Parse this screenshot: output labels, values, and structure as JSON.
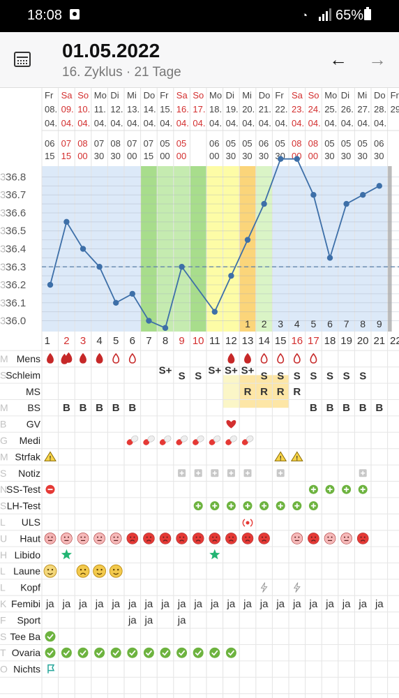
{
  "status_bar": {
    "time": "18:08",
    "battery": "65%"
  },
  "header": {
    "date": "01.05.2022",
    "cycle_info": "16. Zyklus · 21 Tage"
  },
  "chart_data": {
    "type": "line",
    "ylabels": [
      "36.8",
      "36.7",
      "36.6",
      "36.5",
      "36.4",
      "36.3",
      "36.2",
      "36.1",
      "36.0"
    ],
    "ylim": [
      35.94,
      36.86
    ],
    "cover_line": 36.3,
    "weekdays": [
      "Fr",
      "Sa",
      "So",
      "Mo",
      "Di",
      "Mi",
      "Do",
      "Fr",
      "Sa",
      "So",
      "Mo",
      "Di",
      "Mi",
      "Do",
      "Fr",
      "Sa",
      "So",
      "Mo",
      "Di",
      "Mi",
      "Do",
      "Fr"
    ],
    "days": [
      "08.",
      "09.",
      "10.",
      "11.",
      "12.",
      "13.",
      "14.",
      "15.",
      "16.",
      "17.",
      "18.",
      "19.",
      "20.",
      "21.",
      "22.",
      "23.",
      "24.",
      "25.",
      "26.",
      "27.",
      "28.",
      "29."
    ],
    "months": [
      "04.",
      "04.",
      "04.",
      "04.",
      "04.",
      "04.",
      "04.",
      "04.",
      "04.",
      "04.",
      "04.",
      "04.",
      "04.",
      "04.",
      "04.",
      "04.",
      "04.",
      "04.",
      "04.",
      "04.",
      "04.",
      ""
    ],
    "time_h": [
      "06",
      "07",
      "08",
      "07",
      "08",
      "07",
      "07",
      "05",
      "05",
      "",
      "06",
      "05",
      "05",
      "06",
      "05",
      "08",
      "08",
      "05",
      "05",
      "05",
      "06",
      ""
    ],
    "time_m": [
      "15",
      "15",
      "00",
      "30",
      "30",
      "00",
      "15",
      "00",
      "00",
      "",
      "00",
      "30",
      "30",
      "30",
      "30",
      "00",
      "00",
      "30",
      "30",
      "30",
      "30",
      ""
    ],
    "red_days": [
      1,
      2,
      8,
      9,
      15,
      16
    ],
    "cycle_days": [
      "1",
      "2",
      "3",
      "4",
      "5",
      "6",
      "7",
      "8",
      "9",
      "10",
      "11",
      "12",
      "13",
      "14",
      "15",
      "16",
      "17",
      "18",
      "19",
      "20",
      "21",
      "22"
    ],
    "red_cycle_days": [
      2,
      3,
      9,
      10,
      16,
      17
    ],
    "post_ovulation_count": [
      "1",
      "2",
      "3",
      "4",
      "5",
      "6",
      "7",
      "8",
      "9"
    ],
    "temperatures": [
      36.2,
      36.55,
      36.4,
      36.3,
      36.1,
      36.15,
      36.0,
      35.96,
      36.3,
      null,
      36.05,
      36.25,
      36.45,
      36.65,
      36.9,
      36.9,
      36.7,
      36.35,
      36.65,
      36.7,
      36.75
    ],
    "colors": {
      "line": "#3d6fa8",
      "pre": "#dce9f8",
      "green1": "#a8dd8c",
      "green2": "#c5ebb0",
      "green3": "#daf4c6",
      "yellow": "#fdfca6",
      "orange": "#fbd57a",
      "paleyellow": "#fbf6c7"
    }
  },
  "rows": [
    {
      "label": "Mens",
      "type": "mens"
    },
    {
      "label": "Schleim",
      "type": "schleim",
      "values": {
        "7": "S+",
        "8": "S",
        "9": "S",
        "10": "S+",
        "11": "S+",
        "12": "S+",
        "13": "S",
        "14": "S",
        "15": "S",
        "16": "S",
        "17": "S",
        "18": "S",
        "19": "S"
      }
    },
    {
      "label": "MS",
      "type": "text",
      "values": {
        "12": "R",
        "13": "R",
        "14": "R",
        "15": "R"
      }
    },
    {
      "label": "BS",
      "type": "text",
      "values": {
        "1": "B",
        "2": "B",
        "3": "B",
        "4": "B",
        "5": "B",
        "16": "B",
        "17": "B",
        "18": "B",
        "19": "B",
        "20": "B"
      }
    },
    {
      "label": "GV",
      "type": "heart",
      "days": [
        11
      ]
    },
    {
      "label": "Medi",
      "type": "pill",
      "days": [
        5,
        6,
        7,
        8,
        9,
        10,
        11,
        12
      ]
    },
    {
      "label": "Strfak",
      "type": "warn",
      "days": [
        0,
        14,
        15
      ]
    },
    {
      "label": "Notiz",
      "type": "note",
      "days": [
        8,
        9,
        10,
        11,
        12,
        14,
        19
      ]
    },
    {
      "label": "SS-Test",
      "type": "sstest"
    },
    {
      "label": "LH-Test",
      "type": "lh",
      "days": [
        9,
        10,
        11,
        12,
        13,
        14,
        15,
        16
      ]
    },
    {
      "label": "ULS",
      "type": "uls",
      "days": [
        12
      ]
    },
    {
      "label": "Haut",
      "type": "haut"
    },
    {
      "label": "Libido",
      "type": "star",
      "days": [
        1,
        10
      ]
    },
    {
      "label": "Laune",
      "type": "laune"
    },
    {
      "label": "Kopf",
      "type": "bolt",
      "days": [
        13,
        15
      ]
    },
    {
      "label": "Femibi",
      "type": "text",
      "values": {
        "0": "ja",
        "1": "ja",
        "2": "ja",
        "3": "ja",
        "4": "ja",
        "5": "ja",
        "6": "ja",
        "7": "ja",
        "8": "ja",
        "9": "ja",
        "10": "ja",
        "11": "ja",
        "12": "ja",
        "13": "ja",
        "14": "ja",
        "15": "ja",
        "16": "ja",
        "17": "ja",
        "18": "ja",
        "19": "ja",
        "20": "ja"
      }
    },
    {
      "label": "Sport",
      "type": "text",
      "values": {
        "5": "ja",
        "6": "ja",
        "8": "ja"
      }
    },
    {
      "label": "Tee Ba",
      "type": "check",
      "days": [
        0
      ]
    },
    {
      "label": "Ovaria",
      "type": "check",
      "days": [
        0,
        1,
        2,
        3,
        4,
        5,
        6,
        7,
        8,
        9,
        10,
        11
      ]
    },
    {
      "label": "Nichts",
      "type": "flag",
      "days": [
        0
      ]
    }
  ],
  "faint_letters": [
    "M",
    "S",
    "",
    "M",
    "B",
    "G",
    "M",
    "S",
    "N",
    "S",
    "L",
    "U",
    "H",
    "L",
    "L",
    "K",
    "F",
    "S",
    "T",
    "O",
    "N"
  ]
}
